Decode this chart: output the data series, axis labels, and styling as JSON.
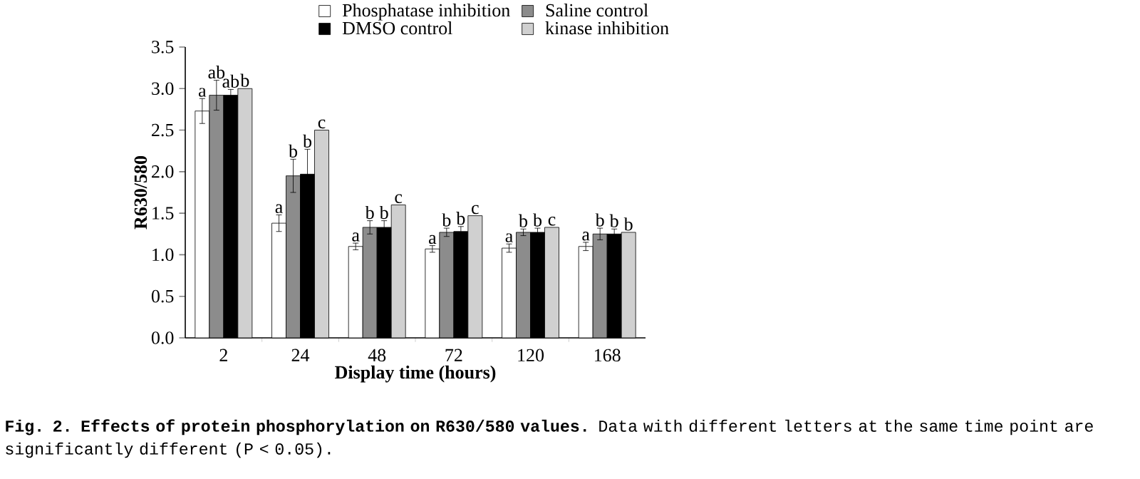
{
  "chart_data": {
    "type": "bar",
    "xlabel": "Display time (hours)",
    "ylabel": "R630/580",
    "categories": [
      "2",
      "24",
      "48",
      "72",
      "120",
      "168"
    ],
    "ylim": [
      0,
      3.5
    ],
    "yticks": [
      {
        "value": 0,
        "label": "0.0"
      },
      0.5,
      {
        "value": 1,
        "label": "1.0"
      },
      1.5,
      {
        "value": 2,
        "label": "2.0"
      },
      2.5,
      {
        "value": 3,
        "label": "3.0"
      },
      3.5
    ],
    "legend": "top right",
    "series": [
      {
        "name": "Phosphatase inhibition",
        "color": "#ffffff",
        "values": [
          2.73,
          1.38,
          1.1,
          1.07,
          1.08,
          1.1
        ],
        "errors": [
          0.15,
          0.1,
          0.04,
          0.04,
          0.05,
          0.05
        ],
        "value_labels": [
          "a",
          "a",
          "a",
          "a",
          "a",
          "a"
        ]
      },
      {
        "name": "Saline control",
        "color": "#8c8c8c",
        "values": [
          2.92,
          1.95,
          1.33,
          1.27,
          1.27,
          1.25
        ],
        "errors": [
          0.18,
          0.2,
          0.08,
          0.05,
          0.04,
          0.07
        ],
        "value_labels": [
          "ab",
          "b",
          "b",
          "b",
          "b",
          "b"
        ]
      },
      {
        "name": "DMSO control",
        "color": "#000000",
        "values": [
          2.92,
          1.97,
          1.33,
          1.28,
          1.27,
          1.25
        ],
        "errors": [
          0.07,
          0.3,
          0.08,
          0.06,
          0.05,
          0.06
        ],
        "value_labels": [
          "ab",
          "b",
          "b",
          "b",
          "b",
          "b"
        ]
      },
      {
        "name": "kinase inhibition",
        "color": "#d0d0d0",
        "values": [
          3.0,
          2.5,
          1.6,
          1.47,
          1.33,
          1.27
        ],
        "errors": [
          null,
          null,
          null,
          null,
          null,
          null
        ],
        "value_labels": [
          "b",
          "c",
          "c",
          "c",
          "c",
          "b"
        ]
      }
    ],
    "annotations": [
      "**Fig. 2. Effects of protein phosphorylation on R630/580 values.** Data with different letters at the same time point are significantly different (P < 0.05)."
    ]
  }
}
